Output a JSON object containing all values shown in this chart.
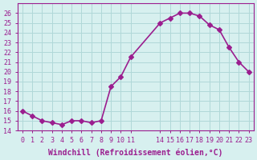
{
  "x": [
    0,
    1,
    2,
    3,
    4,
    5,
    6,
    7,
    8,
    9,
    10,
    11,
    14,
    15,
    16,
    17,
    18,
    19,
    20,
    21,
    22,
    23
  ],
  "y": [
    16.0,
    15.5,
    15.0,
    14.8,
    14.6,
    15.0,
    15.0,
    14.8,
    15.0,
    18.5,
    19.5,
    21.5,
    25.0,
    25.5,
    26.0,
    26.0,
    25.7,
    24.8,
    24.3,
    22.5,
    21.0,
    20.0
  ],
  "line_color": "#9b1e8f",
  "marker_color": "#9b1e8f",
  "bg_color": "#d7f0ef",
  "grid_color": "#b0d8d8",
  "xlabel": "Windchill (Refroidissement éolien,°C)",
  "ylim": [
    14,
    27
  ],
  "yticks": [
    14,
    15,
    16,
    17,
    18,
    19,
    20,
    21,
    22,
    23,
    24,
    25,
    26
  ],
  "xticks": [
    0,
    1,
    2,
    3,
    4,
    5,
    6,
    7,
    8,
    9,
    10,
    11,
    14,
    15,
    16,
    17,
    18,
    19,
    20,
    21,
    22,
    23
  ],
  "xlim": [
    -0.5,
    23.5
  ],
  "tick_fontsize": 6,
  "xlabel_fontsize": 7,
  "marker_size": 3,
  "line_width": 1.2
}
